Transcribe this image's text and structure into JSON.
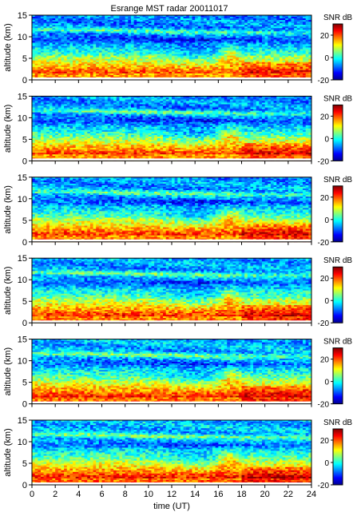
{
  "figure": {
    "title": "Esrange MST radar 20011017"
  },
  "chart_data": {
    "type": "heatmap",
    "title": "Esrange MST radar 20011017",
    "panels": 6,
    "xlabel": "time (UT)",
    "ylabel": "altitude (km)",
    "xlim": [
      0,
      24
    ],
    "ylim": [
      0,
      15
    ],
    "x_ticks": [
      0,
      2,
      4,
      6,
      8,
      10,
      12,
      14,
      16,
      18,
      20,
      22,
      24
    ],
    "y_ticks": [
      0,
      5,
      10,
      15
    ],
    "colorbar": {
      "label": "SNR dB",
      "range": [
        -20,
        30
      ],
      "ticks": [
        -20,
        0,
        20
      ],
      "colormap": "jet"
    },
    "grid": false
  }
}
